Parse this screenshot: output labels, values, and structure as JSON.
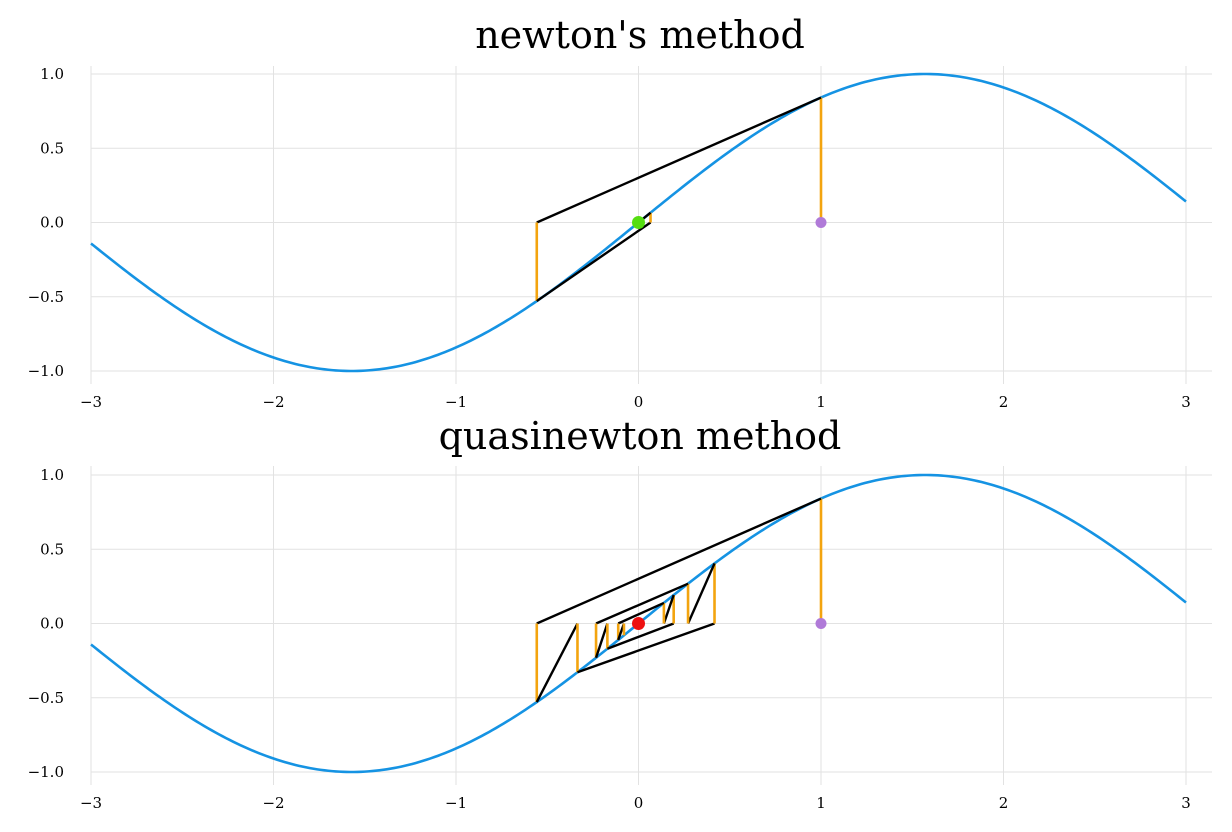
{
  "chart_data": [
    {
      "type": "line",
      "title": "newton's method",
      "xlabel": "",
      "ylabel": "",
      "xlim": [
        -3,
        3
      ],
      "ylim": [
        -1,
        1
      ],
      "xticks": [
        -3,
        -2,
        -1,
        0,
        1,
        2,
        3
      ],
      "xtick_labels": [
        "−3",
        "−2",
        "−1",
        "0",
        "1",
        "2",
        "3"
      ],
      "yticks": [
        1.0,
        0.5,
        0.0,
        -0.5,
        -1.0
      ],
      "ytick_labels": [
        "1.0",
        "0.5",
        "0.0",
        "−0.5",
        "−1.0"
      ],
      "grid": true,
      "function": "sin(x)",
      "start_point": [
        1.0,
        0.0
      ],
      "root_point": [
        0.0,
        0.0
      ],
      "root_color": "#55dd11",
      "start_color": "#b07ad8",
      "iterates": [
        1.0,
        -0.5574,
        0.0659,
        -0.0001
      ]
    },
    {
      "type": "line",
      "title": "quasinewton method",
      "xlabel": "",
      "ylabel": "",
      "xlim": [
        -3,
        3
      ],
      "ylim": [
        -1,
        1
      ],
      "xticks": [
        -3,
        -2,
        -1,
        0,
        1,
        2,
        3
      ],
      "xtick_labels": [
        "−3",
        "−2",
        "−1",
        "0",
        "1",
        "2",
        "3"
      ],
      "yticks": [
        1.0,
        0.5,
        0.0,
        -0.5,
        -1.0
      ],
      "ytick_labels": [
        "1.0",
        "0.5",
        "0.0",
        "−0.5",
        "−1.0"
      ],
      "grid": true,
      "function": "sin(x)",
      "start_point": [
        1.0,
        0.0
      ],
      "root_point": [
        0.0,
        0.0
      ],
      "root_color": "#ee1111",
      "start_color": "#b07ad8",
      "iterates": [
        1.0,
        -0.5574,
        -0.3344,
        0.4165,
        0.2715,
        -0.2326,
        -0.1705,
        0.1928,
        0.1391,
        -0.1111,
        -0.0797
      ]
    }
  ],
  "colors": {
    "curve": "#1593e3",
    "vertical": "#f3a40f",
    "tangent": "#000000"
  }
}
